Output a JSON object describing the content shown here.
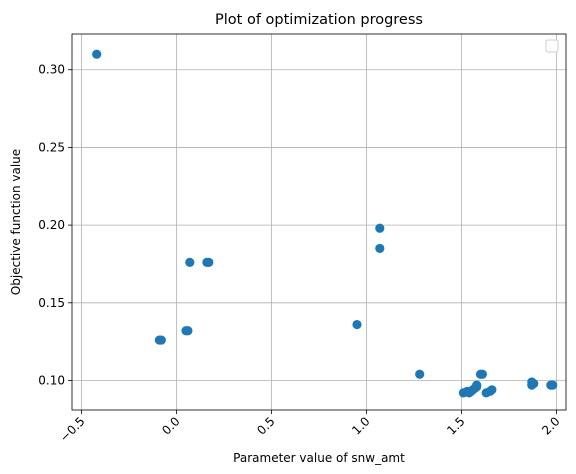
{
  "chart_data": {
    "type": "scatter",
    "title": "Plot of optimization progress",
    "xlabel": "Parameter value of snw_amt",
    "ylabel": "Objective function value",
    "xlim": [
      -0.55,
      2.05
    ],
    "ylim": [
      0.081,
      0.323
    ],
    "xticks": [
      -0.5,
      0.0,
      0.5,
      1.0,
      1.5,
      2.0
    ],
    "xtick_labels": [
      "−0.5",
      "0.0",
      "0.5",
      "1.0",
      "1.5",
      "2.0"
    ],
    "xtick_rotation": -45,
    "yticks": [
      0.1,
      0.15,
      0.2,
      0.25,
      0.3
    ],
    "ytick_labels": [
      "0.10",
      "0.15",
      "0.20",
      "0.25",
      "0.30"
    ],
    "grid": true,
    "legend": "top-right (empty)",
    "point_color": "#1f77b4",
    "series": [
      {
        "points": [
          [
            -0.42,
            0.31
          ],
          [
            -0.09,
            0.126
          ],
          [
            -0.08,
            0.126
          ],
          [
            0.05,
            0.132
          ],
          [
            0.06,
            0.132
          ],
          [
            0.07,
            0.176
          ],
          [
            0.16,
            0.176
          ],
          [
            0.17,
            0.176
          ],
          [
            0.95,
            0.136
          ],
          [
            1.07,
            0.198
          ],
          [
            1.07,
            0.185
          ],
          [
            1.28,
            0.104
          ],
          [
            1.51,
            0.092
          ],
          [
            1.53,
            0.093
          ],
          [
            1.54,
            0.092
          ],
          [
            1.55,
            0.093
          ],
          [
            1.56,
            0.094
          ],
          [
            1.57,
            0.095
          ],
          [
            1.58,
            0.096
          ],
          [
            1.58,
            0.097
          ],
          [
            1.6,
            0.104
          ],
          [
            1.61,
            0.104
          ],
          [
            1.63,
            0.092
          ],
          [
            1.65,
            0.093
          ],
          [
            1.66,
            0.094
          ],
          [
            1.87,
            0.097
          ],
          [
            1.87,
            0.099
          ],
          [
            1.88,
            0.098
          ],
          [
            1.97,
            0.097
          ],
          [
            1.98,
            0.097
          ]
        ]
      }
    ]
  }
}
